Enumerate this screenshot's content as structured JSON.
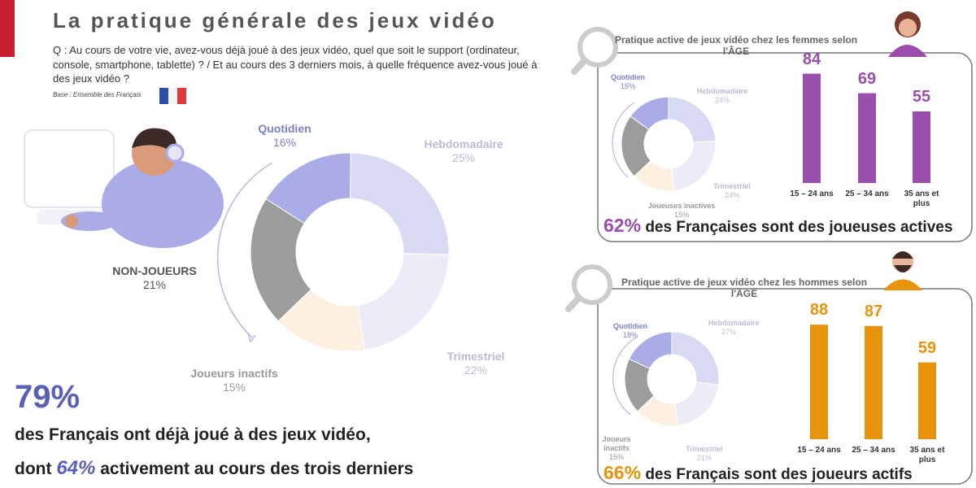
{
  "header": {
    "title": "La pratique générale des jeux vidéo",
    "question": "Q : Au cours de votre vie, avez-vous déjà joué à des jeux vidéo, quel que soit le support (ordinateur, console, smartphone, tablette) ? / Et au cours des 3 derniers mois, à quelle fréquence avez-vous joué à des jeux vidéo ?",
    "base": "Base : Ensemble des Français"
  },
  "chart_data": [
    {
      "type": "pie",
      "categories": [
        "Quotidien",
        "Hebdomadaire",
        "Trimestriel",
        "Joueurs inactifs",
        "NON-JOUEURS"
      ],
      "values": [
        16,
        25,
        22,
        15,
        21
      ],
      "value_labels": [
        "16%",
        "25%",
        "22%",
        "15%",
        "21%"
      ],
      "colors": [
        "#a9ace6",
        "#d8d9f2",
        "#ececf8",
        "#fdf0e0",
        "#9c9c9c"
      ]
    },
    {
      "type": "pie",
      "title": "Pratique active de jeux vidéo chez les femmes selon l'ÂGE",
      "categories": [
        "Quotidien",
        "Hebdomadaire",
        "Trimestriel",
        "Joueuses inactives",
        null
      ],
      "values": [
        15,
        24,
        24,
        15,
        22
      ],
      "value_labels": [
        "15%",
        "24%",
        "24%",
        "15%",
        null
      ],
      "colors": [
        "#a9ace6",
        "#d8d9f2",
        "#ececf8",
        "#fdf0e0",
        "#9c9c9c"
      ]
    },
    {
      "type": "bar",
      "categories": [
        "15 – 24 ans",
        "25 – 34 ans",
        "35 ans et plus"
      ],
      "values": [
        84,
        69,
        55
      ],
      "color": "#9b4dad"
    },
    {
      "type": "pie",
      "title": "Pratique active de jeux vidéo chez les hommes selon l'ÂGE",
      "categories": [
        "Quotidien",
        "Hebdomadaire",
        "Trimestriel",
        "Joueurs inactifs",
        null
      ],
      "values": [
        18,
        27,
        21,
        15,
        19
      ],
      "value_labels": [
        "18%",
        "27%",
        "21%",
        "15%",
        null
      ],
      "colors": [
        "#a9ace6",
        "#d8d9f2",
        "#ececf8",
        "#fdf0e0",
        "#9c9c9c"
      ]
    },
    {
      "type": "bar",
      "categories": [
        "15 – 24 ans",
        "25 – 34 ans",
        "35 ans et plus"
      ],
      "values": [
        88,
        87,
        59
      ],
      "color": "#e8930c"
    }
  ],
  "women_summary": {
    "value": "62%",
    "text": "des Françaises sont des joueuses actives"
  },
  "men_summary": {
    "value": "66%",
    "text": "des Français sont des joueurs actifs"
  },
  "footer": {
    "value": "79%",
    "line1": "des Français ont déjà joué à des jeux vidéo,",
    "line2_start": "dont",
    "line2_value": "64%",
    "line2_end": "activement au cours des trois derniers"
  }
}
